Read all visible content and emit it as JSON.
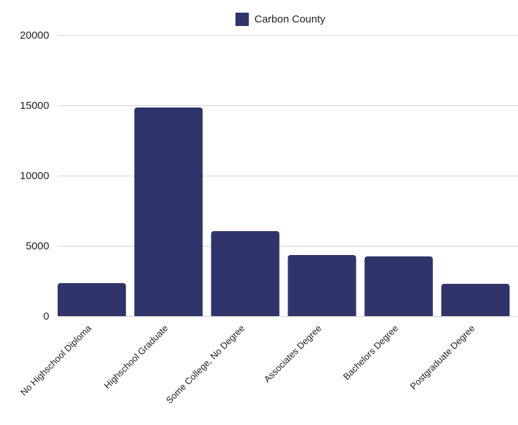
{
  "chart_data": {
    "type": "bar",
    "categories": [
      "No Highschool Diploma",
      "Highschool Graduate",
      "Some College, No Degree",
      "Associates Degree",
      "Bachelors Degree",
      "Postgraduate Degree"
    ],
    "series": [
      {
        "name": "Carbon County",
        "values": [
          2350,
          14850,
          6050,
          4350,
          4250,
          2300
        ],
        "color": "#2f356b"
      }
    ],
    "title": "",
    "xlabel": "",
    "ylabel": "",
    "ylim": [
      0,
      20000
    ],
    "yticks": [
      "0",
      "5000",
      "10000",
      "15000",
      "20000"
    ],
    "grid": true,
    "legend_position": "top-center"
  }
}
